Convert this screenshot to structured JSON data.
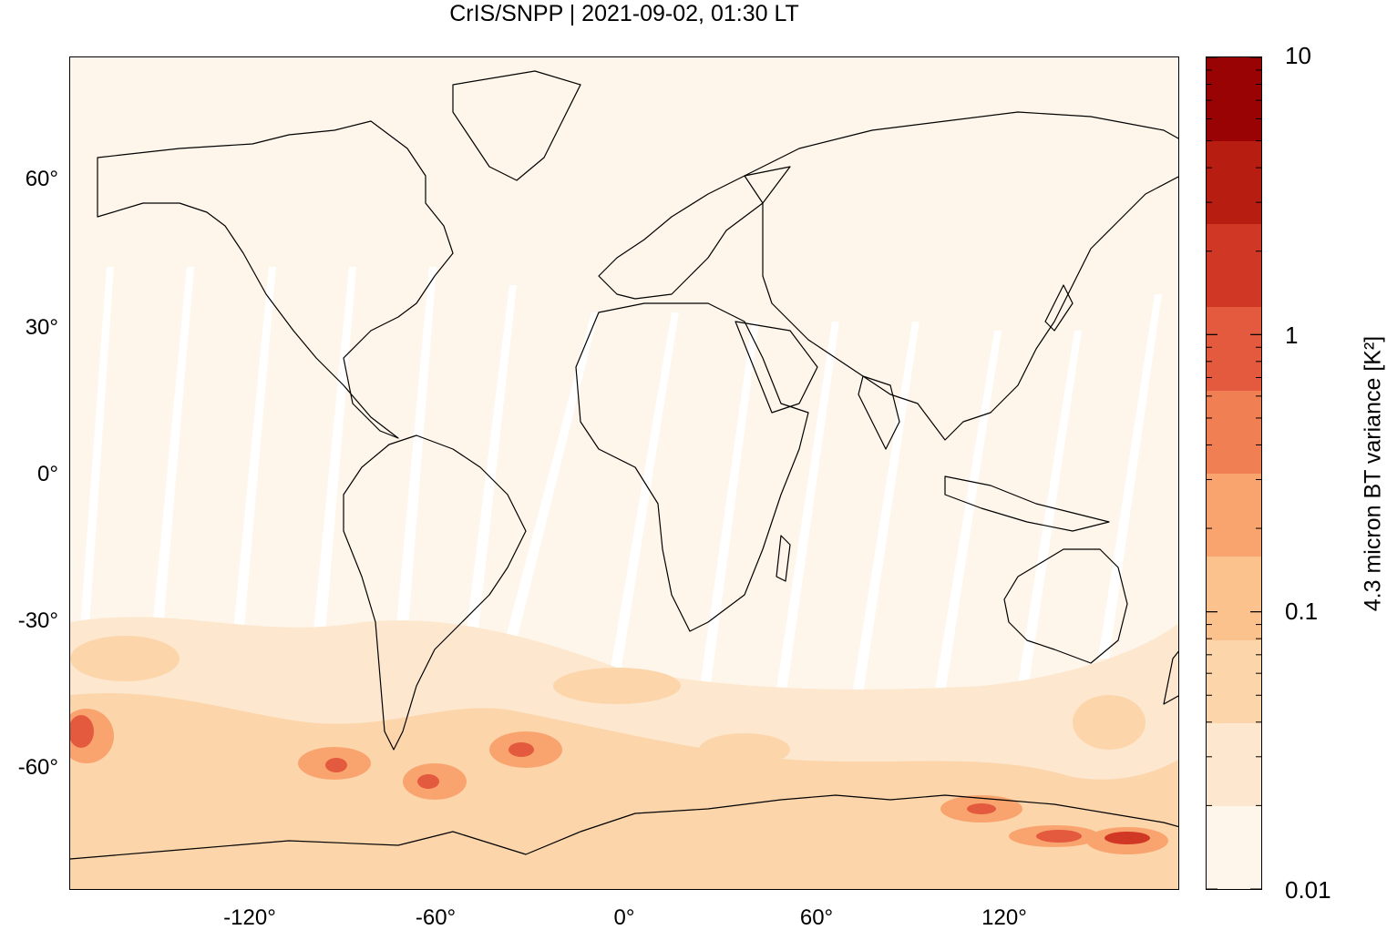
{
  "title": "CrIS/SNPP | 2021-09-02, 01:30 LT",
  "map": {
    "lon_range": [
      -180,
      180
    ],
    "lat_range": [
      -85,
      85
    ],
    "ocean_background": "#fef6ea",
    "x_ticks": [
      {
        "label": "-120°",
        "value": -120
      },
      {
        "label": "-60°",
        "value": -60
      },
      {
        "label": "0°",
        "value": 0
      },
      {
        "label": "60°",
        "value": 60
      },
      {
        "label": "120°",
        "value": 120
      }
    ],
    "y_ticks": [
      {
        "label": "60°",
        "value": 60
      },
      {
        "label": "30°",
        "value": 30
      },
      {
        "label": "0°",
        "value": 0
      },
      {
        "label": "-30°",
        "value": -30
      },
      {
        "label": "-60°",
        "value": -60
      }
    ]
  },
  "colorbar": {
    "title": "4.3 micron BT variance [K²]",
    "scale": "log",
    "range": [
      0.01,
      10
    ],
    "labels": [
      {
        "label": "10",
        "value": 10
      },
      {
        "label": "1",
        "value": 1
      },
      {
        "label": "0.1",
        "value": 0.1
      },
      {
        "label": "0.01",
        "value": 0.01
      }
    ],
    "colors": [
      "#fef6ea",
      "#fde8cf",
      "#fcd5ab",
      "#fbc28e",
      "#f9a46f",
      "#f07f54",
      "#e35a3f",
      "#d03825",
      "#b81d12",
      "#990303"
    ]
  }
}
